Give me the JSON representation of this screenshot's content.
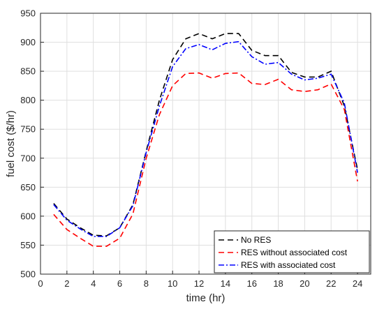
{
  "chart_data": {
    "type": "line",
    "xlabel": "time (hr)",
    "ylabel": "fuel cost ($/hr)",
    "xlim": [
      0,
      25
    ],
    "ylim": [
      500,
      950
    ],
    "xticks": [
      0,
      2,
      4,
      6,
      8,
      10,
      12,
      14,
      16,
      18,
      20,
      22,
      24
    ],
    "yticks": [
      500,
      550,
      600,
      650,
      700,
      750,
      800,
      850,
      900,
      950
    ],
    "grid": true,
    "legend_position": "bottom-right",
    "x": [
      1,
      2,
      3,
      4,
      5,
      6,
      7,
      8,
      9,
      10,
      11,
      12,
      13,
      14,
      15,
      16,
      17,
      18,
      19,
      20,
      21,
      22,
      23,
      24
    ],
    "series": [
      {
        "name": "No RES",
        "color": "#000000",
        "dash": "8,5",
        "values": [
          622,
          595,
          580,
          567,
          566,
          580,
          620,
          712,
          800,
          870,
          906,
          915,
          906,
          915,
          915,
          886,
          877,
          877,
          848,
          840,
          840,
          850,
          790,
          680
        ]
      },
      {
        "name": "RES without associated cost",
        "color": "#ff0000",
        "dash": "8,5",
        "values": [
          603,
          577,
          562,
          548,
          548,
          562,
          604,
          700,
          775,
          825,
          846,
          847,
          838,
          846,
          847,
          829,
          827,
          836,
          818,
          815,
          818,
          828,
          784,
          660
        ]
      },
      {
        "name": "RES with associated cost",
        "color": "#0000ff",
        "dash": "8,3,2,3",
        "values": [
          620,
          593,
          578,
          565,
          565,
          580,
          618,
          710,
          790,
          858,
          889,
          896,
          887,
          898,
          901,
          875,
          862,
          865,
          845,
          835,
          838,
          845,
          795,
          675
        ]
      }
    ]
  }
}
